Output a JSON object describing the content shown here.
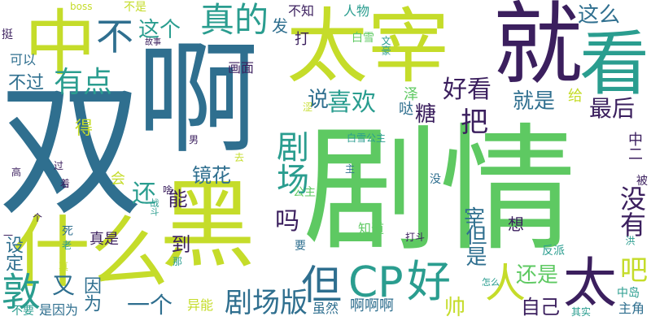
{
  "palette": {
    "background": "#ffffff",
    "dark_purple": "#3b1f5e",
    "slate_blue": "#2f6f8f",
    "teal": "#2a9d8f",
    "green": "#5ec962",
    "yellow_green": "#c5dc2a"
  },
  "words": [
    "剧情",
    "双",
    "啊",
    "黑",
    "太宰",
    "就",
    "什么",
    "中",
    "看",
    "CP",
    "好",
    "太",
    "人",
    "不",
    "真的",
    "但",
    "剧场",
    "有点",
    "敦",
    "剧场版",
    "这个",
    "这么",
    "说",
    "喜欢",
    "把",
    "好看",
    "就是",
    "最后",
    "糖",
    "吗",
    "还是",
    "没有",
    "自己",
    "吧",
    "帅",
    "但是",
    "宰",
    "一个",
    "又",
    "因为",
    "镜花",
    "还",
    "能",
    "到",
    "不过",
    "可以",
    "画面",
    "不知",
    "人物",
    "白雪",
    "发",
    "打",
    "给",
    "泽",
    "哒",
    "得",
    "会",
    "中二",
    "白雪公主",
    "公主",
    "知道",
    "要",
    "虽然",
    "啊啊啊",
    "异能",
    "中岛",
    "主角",
    "其实",
    "反派",
    "想",
    "真是",
    "设定",
    "不要",
    "是因为",
    "挺",
    "一",
    "boss",
    "不是",
    "故事",
    "文豪",
    "男",
    "去",
    "主",
    "过",
    "着",
    "高",
    "战斗",
    "死",
    "老",
    "真",
    "那",
    "怎么",
    "没",
    "被",
    "洪",
    "涩",
    "打斗",
    "啥",
    "个"
  ]
}
